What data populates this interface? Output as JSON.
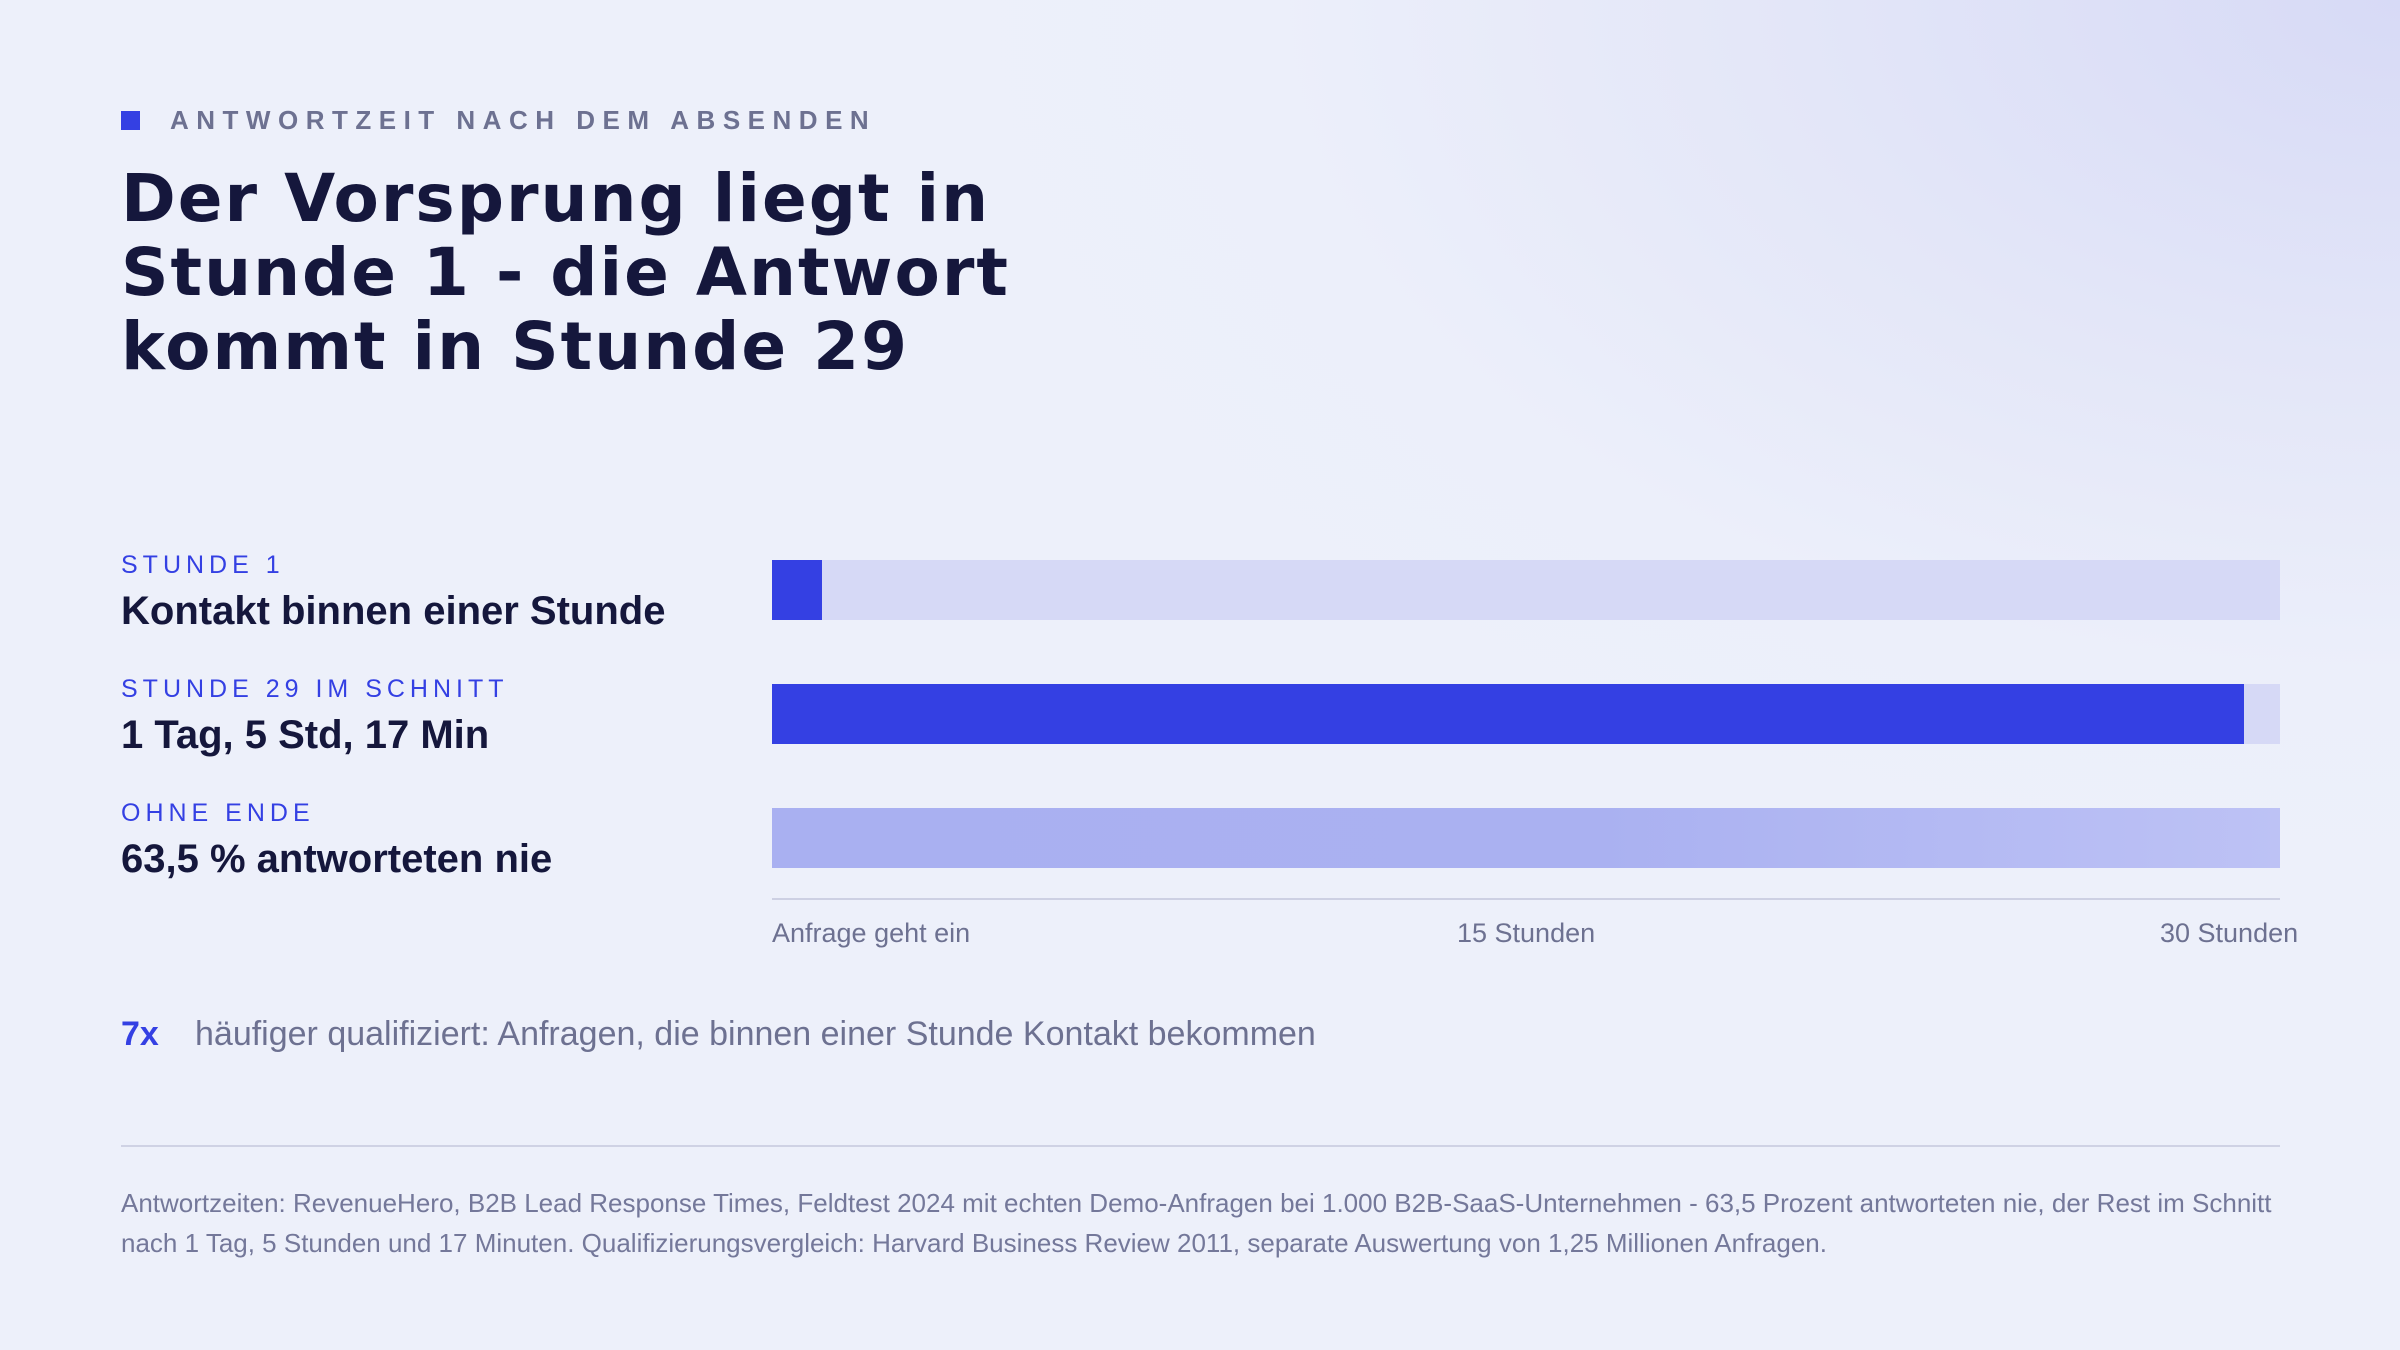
{
  "eyebrow": "ANTWORTZEIT NACH DEM ABSENDEN",
  "title": "Der Vorsprung liegt in Stunde 1 - die Antwort kommt in Stunde 29",
  "colors": {
    "accent": "#3440e3",
    "track": "#d6d9f6",
    "faded": "#aab1f1",
    "text": "#15173c",
    "muted": "#6d7191"
  },
  "chart_data": {
    "type": "bar",
    "orientation": "horizontal",
    "xlim": [
      0,
      30
    ],
    "unit": "Stunden",
    "categories": [
      {
        "kicker": "STUNDE 1",
        "label": "Kontakt binnen einer Stunde",
        "value": 1,
        "style": "solid"
      },
      {
        "kicker": "STUNDE 29 IM SCHNITT",
        "label": "1 Tag, 5 Std, 17 Min",
        "value": 29.28,
        "style": "solid"
      },
      {
        "kicker": "OHNE ENDE",
        "label": "63,5 % antworteten nie",
        "value": 30,
        "style": "faded"
      }
    ],
    "ticks": [
      {
        "value": 0,
        "label": "Anfrage geht ein"
      },
      {
        "value": 15,
        "label": "15 Stunden"
      },
      {
        "value": 30,
        "label": "30 Stunden"
      }
    ]
  },
  "stat": {
    "number": "7x",
    "text": "häufiger qualifiziert: Anfragen, die binnen einer Stunde Kontakt bekommen"
  },
  "source": "Antwortzeiten: RevenueHero, B2B Lead Response Times, Feldtest 2024 mit echten Demo-Anfragen bei 1.000 B2B-SaaS-Unternehmen - 63,5 Prozent antworteten nie, der Rest im Schnitt nach 1 Tag, 5 Stunden und 17 Minuten. Qualifizierungsvergleich: Harvard Business Review 2011, separate Auswertung von 1,25 Millionen Anfragen."
}
